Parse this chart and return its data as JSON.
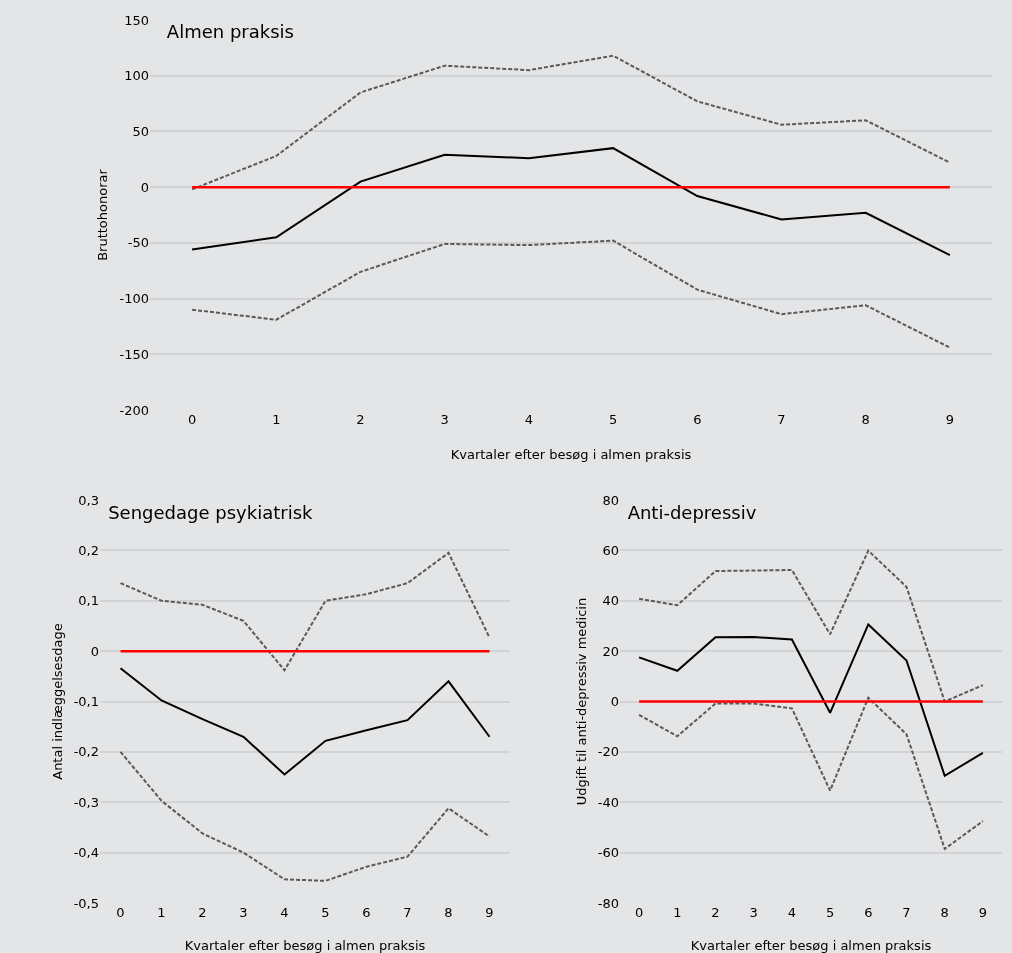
{
  "chart_data": [
    {
      "type": "line",
      "title": "Almen praksis",
      "xlabel": "Kvartaler efter besøg i almen praksis",
      "ylabel": "Bruttohonorar",
      "categories": [
        "0",
        "1",
        "2",
        "3",
        "4",
        "5",
        "6",
        "7",
        "8",
        "9"
      ],
      "series": [
        {
          "color": "#000000",
          "line_style": "solid",
          "values": [
            -56,
            -45,
            5,
            29,
            26,
            35,
            -8,
            -29,
            -23,
            -61
          ]
        },
        {
          "color": "#595959",
          "line_style": "dashed",
          "values": [
            -2,
            28,
            85,
            109,
            105,
            118,
            77,
            56,
            60,
            22
          ]
        },
        {
          "color": "#595959",
          "line_style": "dashed",
          "values": [
            -110,
            -119,
            -76,
            -51,
            -52,
            -48,
            -92,
            -114,
            -106,
            -144
          ]
        }
      ],
      "ref_lines": [
        {
          "axis": "y",
          "value": 0,
          "color": "#ff0000"
        }
      ],
      "ylim": [
        -200,
        150
      ],
      "yticks": [
        -200,
        -150,
        -100,
        -50,
        0,
        50,
        100,
        150
      ],
      "grid": "y",
      "marker": "none"
    },
    {
      "type": "line",
      "title": "Sengedage psykiatrisk",
      "xlabel": "Kvartaler efter besøg i almen praksis",
      "ylabel": "Antal indlæggelsesdage",
      "categories": [
        "0",
        "1",
        "2",
        "3",
        "4",
        "5",
        "6",
        "7",
        "8",
        "9"
      ],
      "series": [
        {
          "color": "#000000",
          "line_style": "solid",
          "values": [
            -0.034,
            -0.098,
            -0.135,
            -0.17,
            -0.245,
            -0.178,
            -0.157,
            -0.137,
            -0.06,
            -0.17
          ]
        },
        {
          "color": "#595959",
          "line_style": "dashed",
          "values": [
            0.135,
            0.1,
            0.092,
            0.06,
            -0.038,
            0.1,
            0.113,
            0.135,
            0.195,
            0.027
          ]
        },
        {
          "color": "#595959",
          "line_style": "dashed",
          "values": [
            -0.2,
            -0.297,
            -0.362,
            -0.4,
            -0.453,
            -0.456,
            -0.428,
            -0.408,
            -0.312,
            -0.368
          ]
        }
      ],
      "ref_lines": [
        {
          "axis": "y",
          "value": 0,
          "color": "#ff0000"
        }
      ],
      "ylim": [
        -0.5,
        0.3
      ],
      "yticks": [
        {
          "value": -0.5,
          "label": "-0,5"
        },
        {
          "value": -0.4,
          "label": "-0,4"
        },
        {
          "value": -0.3,
          "label": "-0,3"
        },
        {
          "value": -0.2,
          "label": "-0,2"
        },
        {
          "value": -0.1,
          "label": "-0,1"
        },
        0,
        {
          "value": 0.1,
          "label": "0,1"
        },
        {
          "value": 0.2,
          "label": "0,2"
        },
        {
          "value": 0.3,
          "label": "0,3"
        }
      ],
      "grid": "y",
      "marker": "none"
    },
    {
      "type": "line",
      "title": "Anti-depressiv",
      "xlabel": "Kvartaler efter besøg i almen praksis",
      "ylabel": "Udgift til anti-depressiv medicin",
      "categories": [
        "0",
        "1",
        "2",
        "3",
        "4",
        "5",
        "6",
        "7",
        "8",
        "9"
      ],
      "series": [
        {
          "color": "#000000",
          "line_style": "solid",
          "values": [
            17.5,
            12.2,
            25.5,
            25.6,
            24.6,
            -4.5,
            30.6,
            16.3,
            -29.5,
            -20.4
          ]
        },
        {
          "color": "#595959",
          "line_style": "dashed",
          "values": [
            40.8,
            38.2,
            51.8,
            52,
            52.2,
            26.7,
            59.9,
            45.5,
            0,
            6.5
          ]
        },
        {
          "color": "#595959",
          "line_style": "dashed",
          "values": [
            -5.3,
            -13.8,
            -0.8,
            -0.8,
            -2.7,
            -35.4,
            1.5,
            -13,
            -58.5,
            -47.5
          ]
        }
      ],
      "ref_lines": [
        {
          "axis": "y",
          "value": 0,
          "color": "#ff0000"
        }
      ],
      "ylim": [
        -80,
        80
      ],
      "yticks": [
        -80,
        -60,
        -40,
        -20,
        0,
        20,
        40,
        60,
        80
      ],
      "grid": "y",
      "marker": "none"
    }
  ]
}
